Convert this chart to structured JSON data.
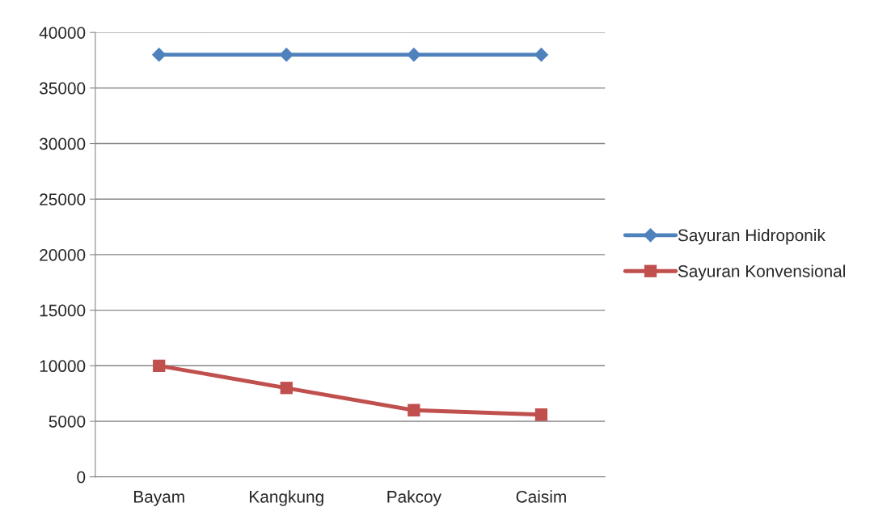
{
  "chart_data": {
    "type": "line",
    "categories": [
      "Bayam",
      "Kangkung",
      "Pakcoy",
      "Caisim"
    ],
    "series": [
      {
        "name": "Sayuran Hidroponik",
        "color": "#4f81bd",
        "values": [
          38000,
          38000,
          38000,
          38000
        ],
        "marker": "diamond"
      },
      {
        "name": "Sayuran Konvensional",
        "color": "#c0504d",
        "values": [
          10000,
          8000,
          6000,
          5600
        ],
        "marker": "square"
      }
    ],
    "ylim": [
      0,
      40000
    ],
    "yticks": [
      0,
      5000,
      10000,
      15000,
      20000,
      25000,
      30000,
      35000,
      40000
    ],
    "grid": "y",
    "legend": "right",
    "line_style": "solid"
  }
}
